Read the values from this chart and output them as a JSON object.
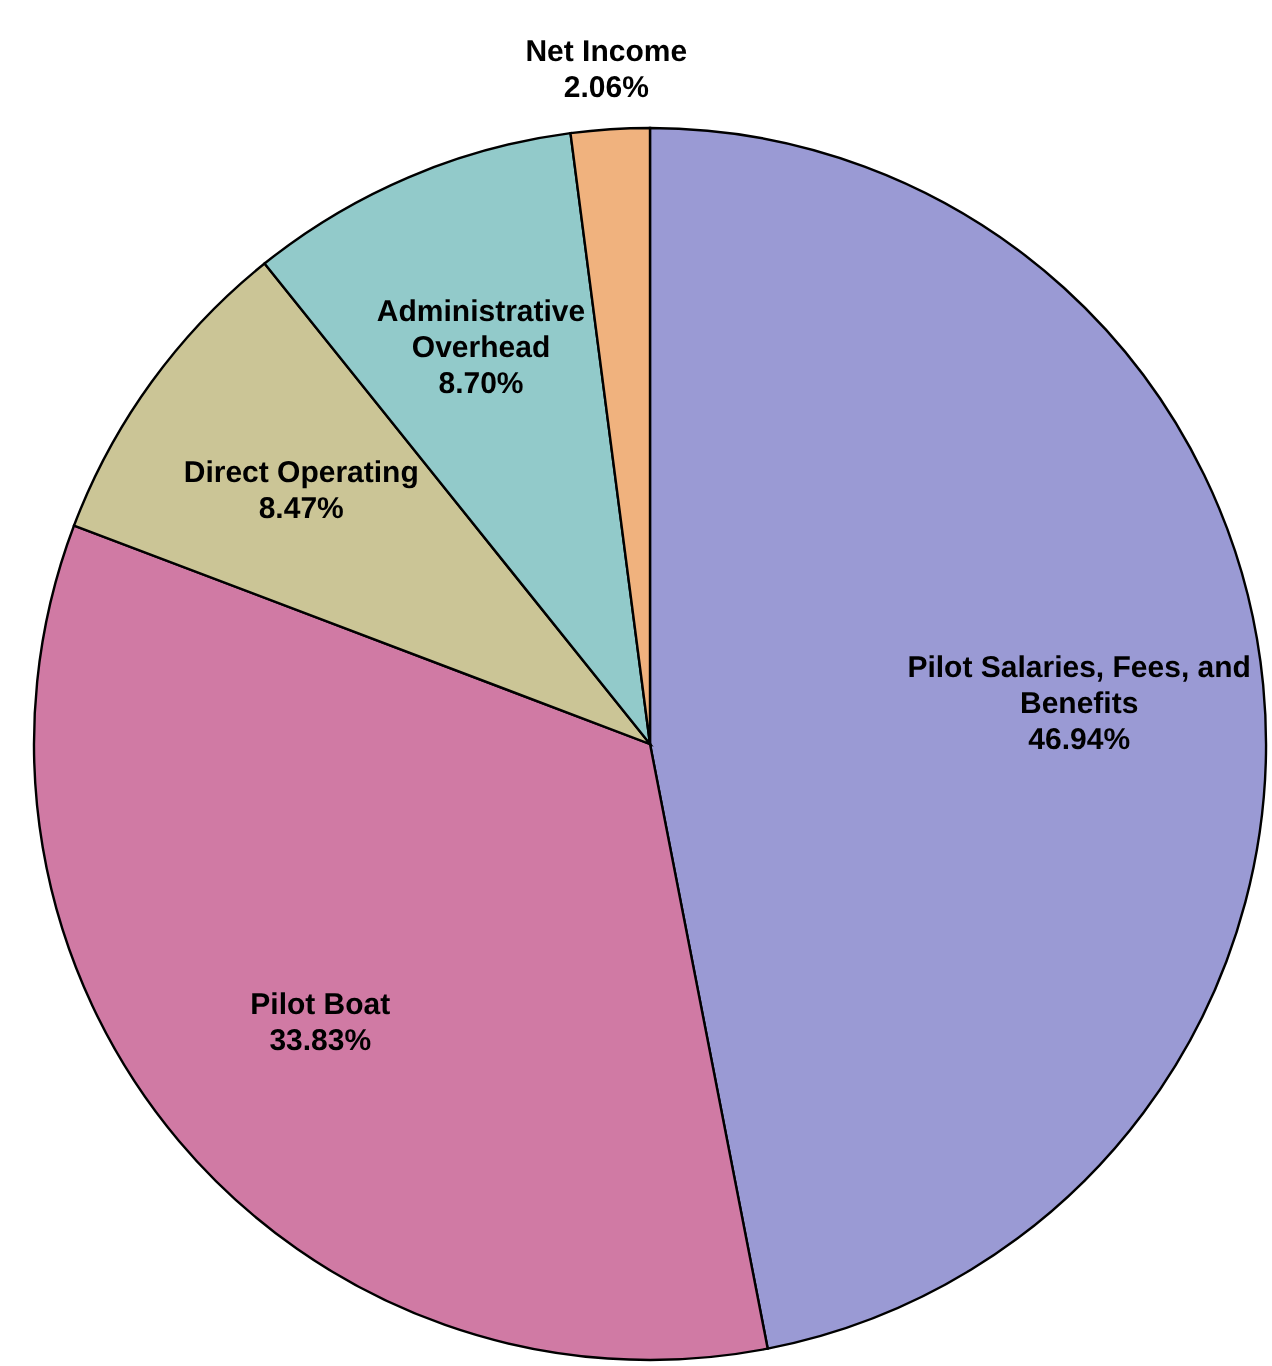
{
  "chart_data": {
    "type": "pie",
    "categories": [
      "Pilot Salaries, Fees, and Benefits",
      "Pilot Boat",
      "Direct Operating",
      "Administrative Overhead",
      "Net Income"
    ],
    "values": [
      46.94,
      33.83,
      8.47,
      8.7,
      2.06
    ],
    "value_labels": [
      "46.94%",
      "33.83%",
      "8.47%",
      "8.70%",
      "2.06%"
    ],
    "colors": [
      "#9a9ad4",
      "#d07aa4",
      "#cbc596",
      "#92caca",
      "#f0b27e"
    ]
  }
}
